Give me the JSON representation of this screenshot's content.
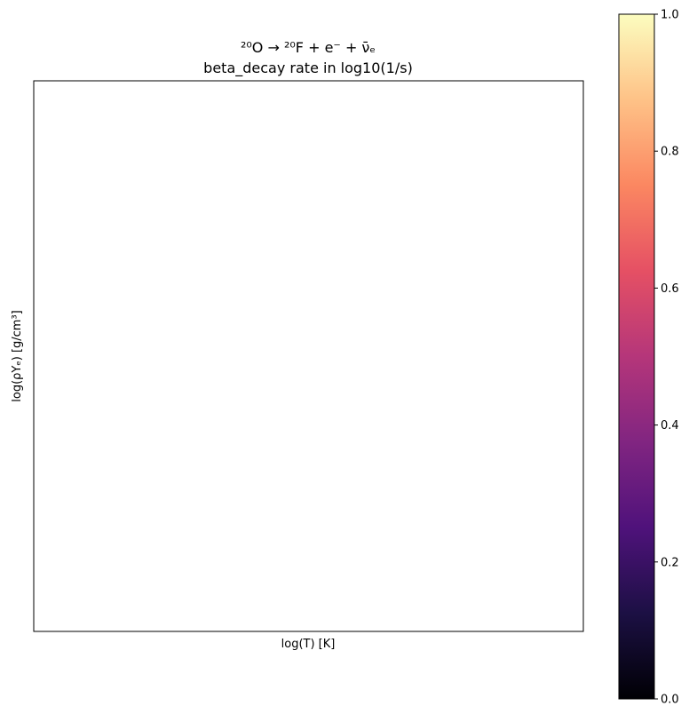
{
  "chart_data": {
    "type": "heatmap",
    "title_line1": "²⁰O → ²⁰F + e⁻ + ν̄ₑ",
    "title_line2": "beta_decay rate in log10(1/s)",
    "xlabel": "log(T) [K]",
    "ylabel": "log(ρYₑ) [g/cm³]",
    "values": [],
    "colorbar": {
      "colormap": "magma",
      "range": [
        0.0,
        1.0
      ],
      "ticks": [
        0.0,
        0.2,
        0.4,
        0.6,
        0.8,
        1.0
      ],
      "tick_labels": [
        "0.0",
        "0.2",
        "0.4",
        "0.6",
        "0.8",
        "1.0"
      ],
      "color_stops": [
        "#000004",
        "#1c1044",
        "#4f127b",
        "#812581",
        "#b5367a",
        "#e55064",
        "#fb8761",
        "#fec287",
        "#fcfdbf"
      ]
    },
    "grid": false
  }
}
